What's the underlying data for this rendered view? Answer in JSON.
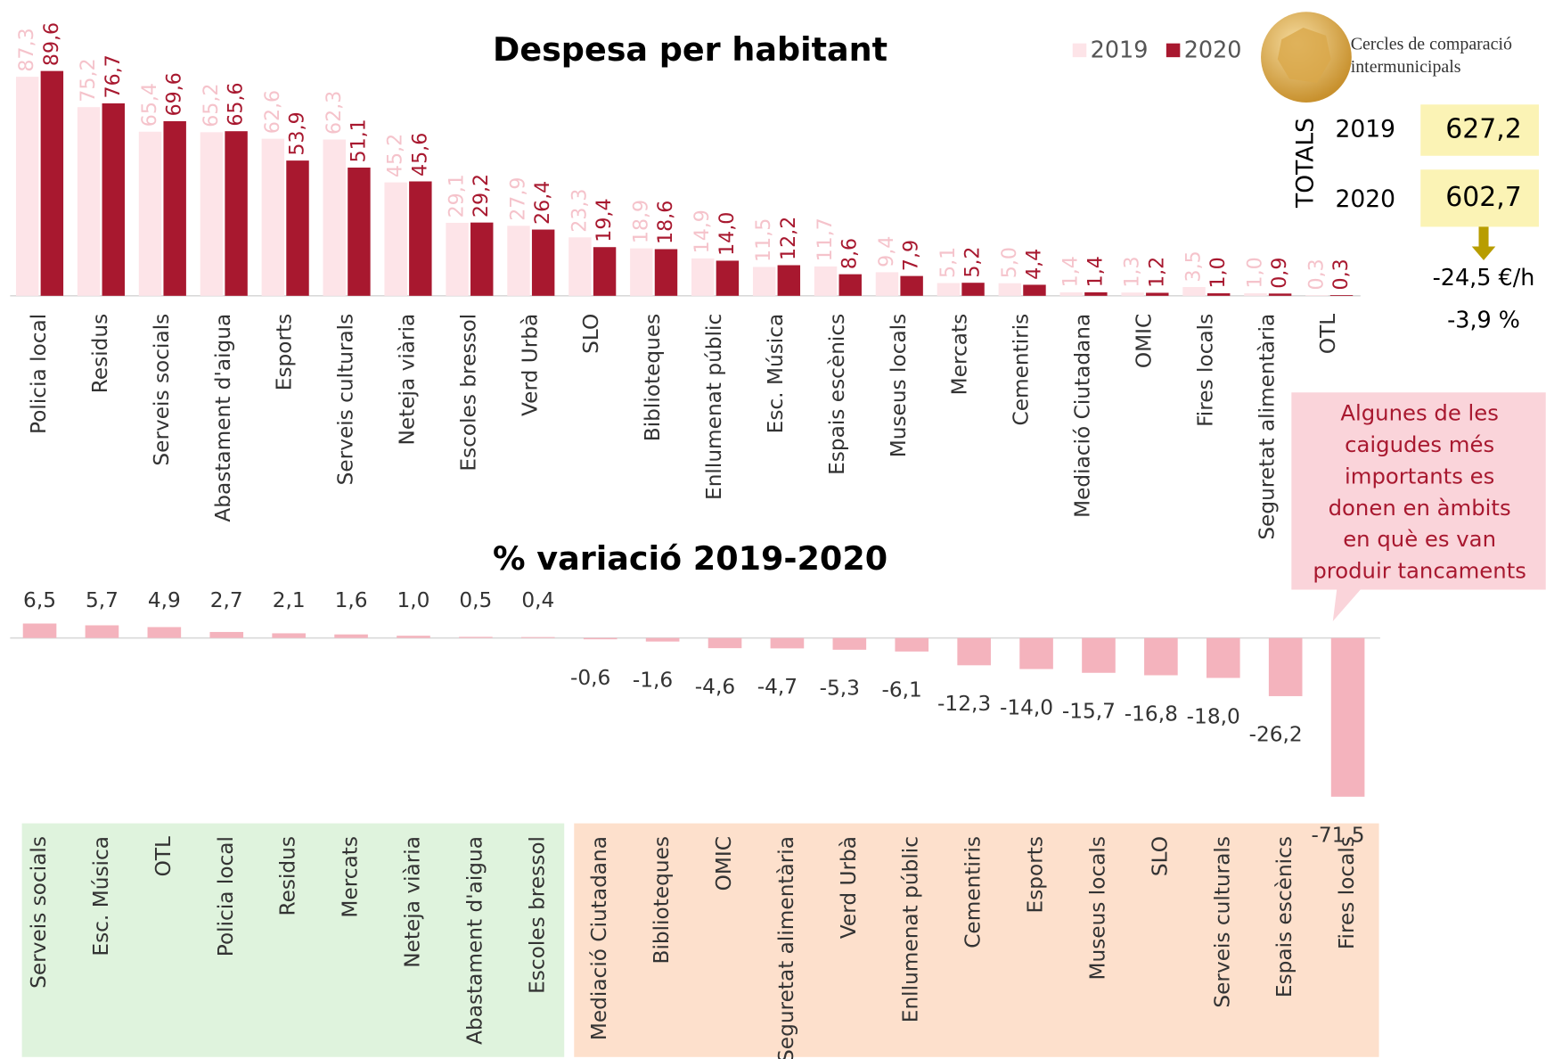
{
  "chart_data": [
    {
      "type": "grouped-bar",
      "title": "Despesa per habitant",
      "categories": [
        "Policia local",
        "Residus",
        "Serveis socials",
        "Abastament d'aigua",
        "Esports",
        "Serveis culturals",
        "Neteja viària",
        "Escoles bressol",
        "Verd Urbà",
        "SLO",
        "Biblioteques",
        "Enllumenat públic",
        "Esc. Música",
        "Espais escènics",
        "Museus locals",
        "Mercats",
        "Cementiris",
        "Mediació Ciutadana",
        "OMIC",
        "Fires locals",
        "Seguretat alimentària",
        "OTL"
      ],
      "series": [
        {
          "name": "2019",
          "color": "#fde4e8",
          "label_color": "#f5c3cb",
          "values": [
            87.3,
            75.2,
            65.4,
            65.2,
            62.6,
            62.3,
            45.2,
            29.1,
            27.9,
            23.3,
            18.9,
            14.9,
            11.5,
            11.7,
            9.4,
            5.1,
            5.0,
            1.4,
            1.3,
            3.5,
            1.0,
            0.3
          ],
          "value_labels": [
            "87,3",
            "75,2",
            "65,4",
            "65,2",
            "62,6",
            "62,3",
            "45,2",
            "29,1",
            "27,9",
            "23,3",
            "18,9",
            "14,9",
            "11,5",
            "11,7",
            "9,4",
            "5,1",
            "5,0",
            "1,4",
            "1,3",
            "3,5",
            "1,0",
            "0,3"
          ]
        },
        {
          "name": "2020",
          "color": "#a8182f",
          "label_color": "#a8182f",
          "values": [
            89.6,
            76.7,
            69.6,
            65.6,
            53.9,
            51.1,
            45.6,
            29.2,
            26.4,
            19.4,
            18.6,
            14.0,
            12.2,
            8.6,
            7.9,
            5.2,
            4.4,
            1.4,
            1.2,
            1.0,
            0.9,
            0.3
          ],
          "value_labels": [
            "89,6",
            "76,7",
            "69,6",
            "65,6",
            "53,9",
            "51,1",
            "45,6",
            "29,2",
            "26,4",
            "19,4",
            "18,6",
            "14,0",
            "12,2",
            "8,6",
            "7,9",
            "5,2",
            "4,4",
            "1,4",
            "1,2",
            "1,0",
            "0,9",
            "0,3"
          ]
        }
      ]
    },
    {
      "type": "bar",
      "title": "% variació 2019-2020",
      "color": "#f4b3bd",
      "categories": [
        "Serveis socials",
        "Esc. Música",
        "OTL",
        "Policia local",
        "Residus",
        "Mercats",
        "Neteja viària",
        "Abastament d'aigua",
        "Escoles bressol",
        "Mediació Ciutadana",
        "Biblioteques",
        "OMIC",
        "Seguretat alimentària",
        "Verd Urbà",
        "Enllumenat públic",
        "Cementiris",
        "Esports",
        "Museus locals",
        "SLO",
        "Serveis culturals",
        "Espais escènics",
        "Fires locals"
      ],
      "values": [
        6.5,
        5.7,
        4.9,
        2.7,
        2.1,
        1.6,
        1.0,
        0.5,
        0.4,
        -0.6,
        -1.6,
        -4.6,
        -4.7,
        -5.3,
        -6.1,
        -12.3,
        -14.0,
        -15.7,
        -16.8,
        -18.0,
        -26.2,
        -71.5
      ],
      "value_labels": [
        "6,5",
        "5,7",
        "4,9",
        "2,7",
        "2,1",
        "1,6",
        "1,0",
        "0,5",
        "0,4",
        "-0,6",
        "-1,6",
        "-4,6",
        "-4,7",
        "-5,3",
        "-6,1",
        "-12,3",
        "-14,0",
        "-15,7",
        "-16,8",
        "-18,0",
        "-26,2",
        "-71,5"
      ]
    }
  ],
  "logo": {
    "line1": "Cercles de comparació",
    "line2": "intermunicipals"
  },
  "totals": {
    "label": "TOTALS",
    "rows": [
      {
        "year": "2019",
        "value": "627,2"
      },
      {
        "year": "2020",
        "value": "602,7"
      }
    ],
    "change_abs": "-24,5 €/h",
    "change_pct": "-3,9 %"
  },
  "callout": {
    "lines": [
      "Algunes de les",
      "caigudes més",
      "importants es",
      "donen en àmbits",
      "en què es van",
      "produir tancaments"
    ]
  }
}
